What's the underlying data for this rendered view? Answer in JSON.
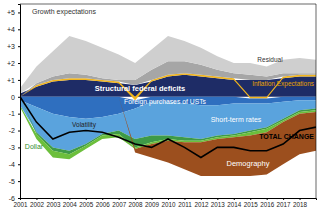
{
  "chart_data": {
    "type": "area",
    "stacked": true,
    "grid": false,
    "x": [
      2001,
      2002,
      2003,
      2004,
      2005,
      2006,
      2007,
      2008,
      2009,
      2010,
      2011,
      2012,
      2013,
      2014,
      2015,
      2016,
      2017,
      2018,
      2019
    ],
    "xlim": [
      2001,
      2019
    ],
    "xticks": [
      2001,
      2002,
      2003,
      2004,
      2005,
      2006,
      2007,
      2008,
      2009,
      2010,
      2011,
      2012,
      2013,
      2014,
      2015,
      2016,
      2017,
      2018
    ],
    "ylim": [
      -6,
      5.5
    ],
    "yticks": [
      {
        "value": 5,
        "label": "+5"
      },
      {
        "value": 4,
        "label": "+4"
      },
      {
        "value": 3,
        "label": "+3"
      },
      {
        "value": 2,
        "label": "+2"
      },
      {
        "value": 1,
        "label": "+1"
      },
      0,
      -1,
      -2,
      -3,
      -4,
      -5,
      -6
    ],
    "series": [
      {
        "name": "Structural federal deficits",
        "color": "#1e2c66",
        "values": [
          0.2,
          0.6,
          0.9,
          1.0,
          1.0,
          0.9,
          0.8,
          0.7,
          0.9,
          1.2,
          1.3,
          1.2,
          1.1,
          1.0,
          1.0,
          1.0,
          1.1,
          1.2,
          1.2
        ]
      },
      {
        "name": "Inflation Expectations",
        "color": "#f2b51d",
        "values": [
          0,
          0.1,
          0.1,
          0.1,
          0.1,
          0.1,
          0.1,
          -0.2,
          0.1,
          0.1,
          0.1,
          0.1,
          0.1,
          0.1,
          -0.1,
          -0.1,
          0.1,
          0.1,
          0.1
        ]
      },
      {
        "name": "Residual",
        "color": "#a6a6a6",
        "values": [
          0,
          0.1,
          0.2,
          0.3,
          0.2,
          0.1,
          0.1,
          0.3,
          0.6,
          0.8,
          0.7,
          0.6,
          0.4,
          0.3,
          0.3,
          0.2,
          0.2,
          0.1,
          0.1
        ]
      },
      {
        "name": "Growth expectations",
        "color": "#cfcfcf",
        "values": [
          0.3,
          1.0,
          1.5,
          2.2,
          2.0,
          1.8,
          1.5,
          1.0,
          1.2,
          1.5,
          1.2,
          1.0,
          0.8,
          0.6,
          0.7,
          0.6,
          0.8,
          0.9,
          0.8
        ]
      },
      {
        "name": "Foreign purchases of USTs",
        "color": "#2f6fbf",
        "values": [
          -0.2,
          -0.6,
          -1.0,
          -1.2,
          -1.3,
          -1.2,
          -1.0,
          -0.5,
          -0.3,
          -0.3,
          -0.4,
          -0.5,
          -0.5,
          -0.4,
          -0.3,
          -0.3,
          -0.3,
          -0.2,
          -0.2
        ]
      },
      {
        "name": "Short-term rates",
        "color": "#5aa3dd",
        "values": [
          -0.3,
          -1.5,
          -2.0,
          -2.0,
          -1.5,
          -1.0,
          -1.0,
          -1.8,
          -2.0,
          -2.0,
          -2.0,
          -2.0,
          -1.8,
          -1.8,
          -1.6,
          -1.4,
          -1.0,
          -0.6,
          -0.5
        ]
      },
      {
        "name": "Volatility",
        "color": "#3e9a47",
        "values": [
          0,
          -0.1,
          -0.2,
          -0.2,
          -0.1,
          -0.1,
          -0.2,
          -0.5,
          -0.4,
          -0.2,
          -0.2,
          -0.1,
          -0.1,
          -0.1,
          -0.1,
          -0.1,
          -0.1,
          -0.1,
          -0.1
        ]
      },
      {
        "name": "Dollar",
        "color": "#6cbf3c",
        "values": [
          -0.1,
          -0.3,
          -0.4,
          -0.3,
          -0.2,
          -0.2,
          -0.2,
          -0.1,
          -0.1,
          -0.1,
          -0.1,
          -0.1,
          -0.1,
          -0.1,
          -0.2,
          -0.2,
          -0.1,
          -0.1,
          -0.1
        ]
      },
      {
        "name": "Demography",
        "color": "#9c4f1e",
        "values": [
          0,
          0,
          0,
          0,
          0,
          0,
          0,
          -0.2,
          -0.8,
          -1.3,
          -1.6,
          -2.0,
          -2.2,
          -2.3,
          -2.4,
          -2.5,
          -2.5,
          -2.4,
          -2.3
        ]
      },
      {
        "name": "TOTAL CHANGE",
        "color": "#000000",
        "type": "line",
        "values": [
          0,
          -1.5,
          -2.5,
          -2.1,
          -2.0,
          -2.1,
          -2.4,
          -2.8,
          -3.0,
          -2.5,
          -3.0,
          -3.6,
          -3.0,
          -3.0,
          -3.2,
          -3.2,
          -2.8,
          -2.0,
          -1.8
        ]
      }
    ]
  }
}
